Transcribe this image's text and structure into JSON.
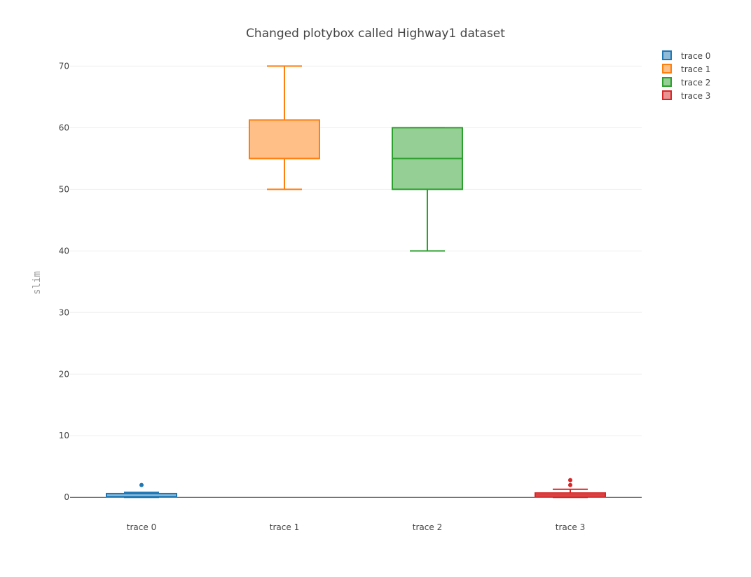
{
  "chart_data": {
    "type": "box",
    "title": "Changed plotybox called Highway1 dataset",
    "xlabel": "",
    "ylabel": "slim",
    "ylim": [
      -3.5,
      73
    ],
    "yticks": [
      0,
      10,
      20,
      30,
      40,
      50,
      60,
      70
    ],
    "grid": true,
    "legend_position": "top-right",
    "categories": [
      "trace 0",
      "trace 1",
      "trace 2",
      "trace 3"
    ],
    "series": [
      {
        "name": "trace 0",
        "color": "#1f77b4",
        "fill": "#8fbbd9",
        "lowerfence": 0,
        "q1": 0.1,
        "median": 0.1,
        "q3": 0.6,
        "upperfence": 0.8,
        "outliers": [
          2
        ]
      },
      {
        "name": "trace 1",
        "color": "#ff7f0e",
        "fill": "#ffbf86",
        "lowerfence": 50,
        "q1": 55,
        "median": 55,
        "q3": 61.25,
        "upperfence": 70,
        "outliers": []
      },
      {
        "name": "trace 2",
        "color": "#2ca02c",
        "fill": "#95cf95",
        "lowerfence": 40,
        "q1": 50,
        "median": 55,
        "q3": 60,
        "upperfence": 60,
        "outliers": []
      },
      {
        "name": "trace 3",
        "color": "#d62728",
        "fill": "#ea9393",
        "lowerfence": 0,
        "q1": 0.1,
        "median": 0.4,
        "q3": 0.7,
        "upperfence": 1.3,
        "outliers": [
          2,
          2.8
        ]
      }
    ]
  }
}
